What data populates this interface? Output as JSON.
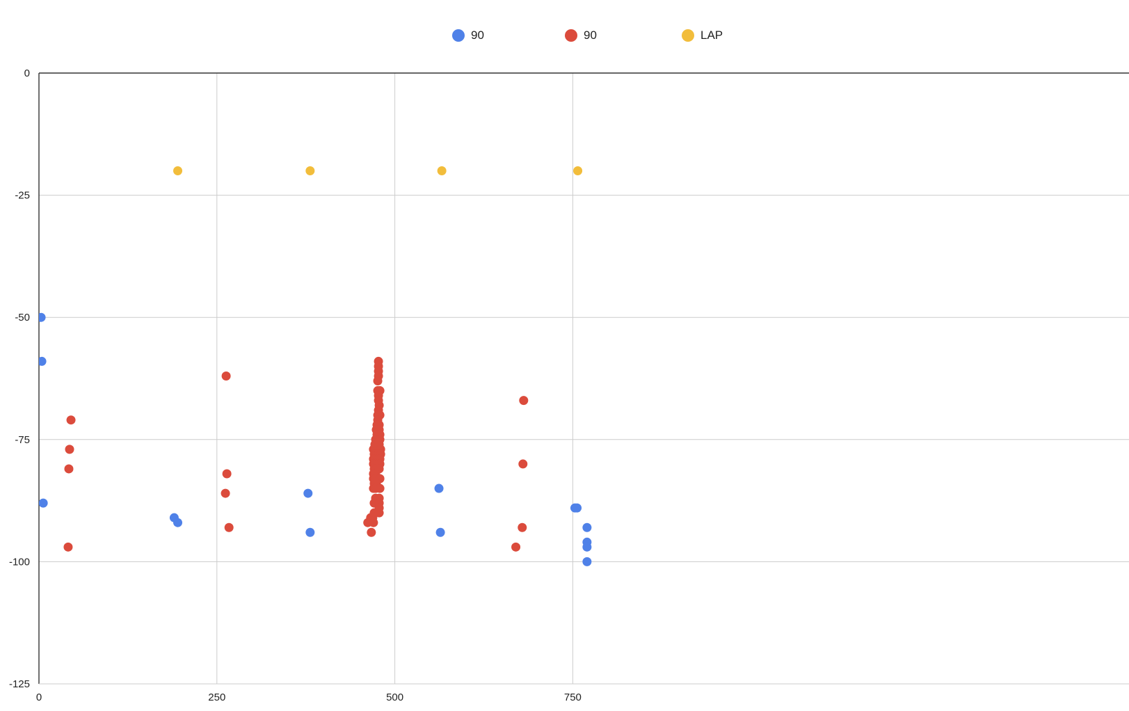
{
  "chart_data": {
    "type": "scatter",
    "title": "",
    "xlabel": "",
    "ylabel": "",
    "xlim": [
      0,
      775
    ],
    "ylim": [
      -125,
      0
    ],
    "x_ticks": [
      "0",
      "250",
      "500",
      "750"
    ],
    "y_ticks": [
      "0",
      "-25",
      "-50",
      "-75",
      "-100",
      "-125"
    ],
    "grid": true,
    "legend_position": "top-center",
    "series": [
      {
        "name": "90",
        "color": "#4f81e8",
        "points": [
          [
            3,
            -50
          ],
          [
            4,
            -59
          ],
          [
            6,
            -88
          ],
          [
            190,
            -91
          ],
          [
            195,
            -92
          ],
          [
            378,
            -86
          ],
          [
            381,
            -94
          ],
          [
            562,
            -85
          ],
          [
            564,
            -94
          ],
          [
            753,
            -89
          ],
          [
            756,
            -89
          ],
          [
            770,
            -93
          ],
          [
            770,
            -96
          ],
          [
            770,
            -97
          ],
          [
            770,
            -100
          ]
        ]
      },
      {
        "name": "90",
        "color": "#db4b3c",
        "points": [
          [
            45,
            -71
          ],
          [
            43,
            -77
          ],
          [
            42,
            -81
          ],
          [
            41,
            -97
          ],
          [
            263,
            -62
          ],
          [
            264,
            -82
          ],
          [
            262,
            -86
          ],
          [
            267,
            -93
          ],
          [
            477,
            -59
          ],
          [
            477,
            -60
          ],
          [
            477,
            -61
          ],
          [
            477,
            -62
          ],
          [
            476,
            -63
          ],
          [
            476,
            -65
          ],
          [
            479,
            -65
          ],
          [
            477,
            -66
          ],
          [
            477,
            -67
          ],
          [
            478,
            -68
          ],
          [
            477,
            -69
          ],
          [
            476,
            -70
          ],
          [
            479,
            -70
          ],
          [
            476,
            -71
          ],
          [
            478,
            -72
          ],
          [
            475,
            -72
          ],
          [
            474,
            -73
          ],
          [
            478,
            -73
          ],
          [
            475,
            -74
          ],
          [
            479,
            -74
          ],
          [
            473,
            -75
          ],
          [
            476,
            -75
          ],
          [
            479,
            -75
          ],
          [
            472,
            -76
          ],
          [
            475,
            -76
          ],
          [
            478,
            -76
          ],
          [
            470,
            -77
          ],
          [
            474,
            -77
          ],
          [
            477,
            -77
          ],
          [
            480,
            -77
          ],
          [
            471,
            -78
          ],
          [
            474,
            -78
          ],
          [
            477,
            -78
          ],
          [
            480,
            -78
          ],
          [
            470,
            -79
          ],
          [
            473,
            -79
          ],
          [
            476,
            -79
          ],
          [
            479,
            -79
          ],
          [
            470,
            -80
          ],
          [
            473,
            -80
          ],
          [
            476,
            -80
          ],
          [
            479,
            -80
          ],
          [
            471,
            -81
          ],
          [
            474,
            -81
          ],
          [
            478,
            -81
          ],
          [
            470,
            -82
          ],
          [
            473,
            -82
          ],
          [
            470,
            -83
          ],
          [
            473,
            -83
          ],
          [
            479,
            -83
          ],
          [
            471,
            -84
          ],
          [
            474,
            -84
          ],
          [
            470,
            -85
          ],
          [
            473,
            -85
          ],
          [
            479,
            -85
          ],
          [
            473,
            -87
          ],
          [
            478,
            -87
          ],
          [
            471,
            -88
          ],
          [
            478,
            -88
          ],
          [
            478,
            -89
          ],
          [
            471,
            -90
          ],
          [
            478,
            -90
          ],
          [
            466,
            -91
          ],
          [
            469,
            -91
          ],
          [
            462,
            -92
          ],
          [
            470,
            -92
          ],
          [
            467,
            -94
          ],
          [
            681,
            -67
          ],
          [
            680,
            -80
          ],
          [
            679,
            -93
          ],
          [
            670,
            -97
          ]
        ]
      },
      {
        "name": "LAP",
        "color": "#f2bd3b",
        "points": [
          [
            195,
            -20
          ],
          [
            381,
            -20
          ],
          [
            566,
            -20
          ],
          [
            757,
            -20
          ]
        ]
      }
    ]
  }
}
